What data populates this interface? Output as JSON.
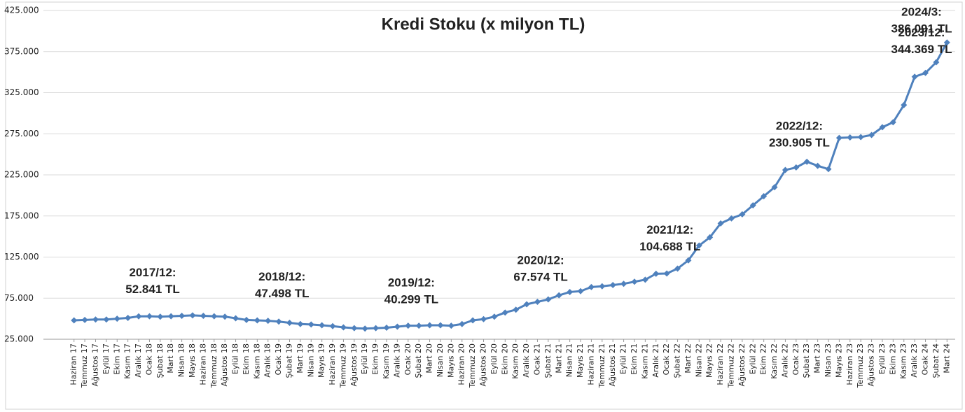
{
  "chart_data": {
    "type": "line",
    "title": "Kredi Stoku (x milyon TL)",
    "categories": [
      "Haziran 17",
      "Temmuz 17",
      "Ağustos 17",
      "Eylül 17",
      "Ekim 17",
      "Kasım 17",
      "Aralık 17",
      "Ocak 18",
      "Şubat 18",
      "Mart 18",
      "Nisan 18",
      "Mayıs 18",
      "Haziran 18",
      "Temmuz 18",
      "Ağustos 18",
      "Eylül 18",
      "Ekim 18",
      "Kasım 18",
      "Aralık 18",
      "Ocak 19",
      "Şubat 19",
      "Mart 19",
      "Nisan 19",
      "Mayıs 19",
      "Haziran 19",
      "Temmuz 19",
      "Ağustos 19",
      "Eylül 19",
      "Ekim 19",
      "Kasım 19",
      "Aralık 19",
      "Ocak 20",
      "Şubat 20",
      "Mart 20",
      "Nisan 20",
      "Mayıs 20",
      "Haziran 20",
      "Temmuz 20",
      "Ağustos 20",
      "Eylül 20",
      "Ekim 20",
      "Kasım 20",
      "Aralık 20",
      "Ocak 21",
      "Şubat 21",
      "Mart 21",
      "Nisan 21",
      "Mayıs 21",
      "Haziran 21",
      "Temmuz 21",
      "Ağustos 21",
      "Eylül 21",
      "Ekim 21",
      "Kasım 21",
      "Aralık 21",
      "Ocak 22",
      "Şubat 22",
      "Mart 22",
      "Nisan 22",
      "Mayıs 22",
      "Haziran 22",
      "Temmuz 22",
      "Ağustos 22",
      "Eylül 22",
      "Ekim 22",
      "Kasım 22",
      "Aralık 22",
      "Ocak 23",
      "Şubat 23",
      "Mart 23",
      "Nisan 23",
      "Mayıs 23",
      "Haziran 23",
      "Temmuz 23",
      "Ağustos 23",
      "Eylül 23",
      "Ekim 23",
      "Kasım 23",
      "Aralık 23",
      "Ocak 24",
      "Şubat 24",
      "Mart 24"
    ],
    "series": [
      {
        "name": "Kredi Stoku",
        "color": "#4f81bd",
        "values": [
          48000,
          48500,
          49000,
          49000,
          50000,
          51000,
          52841,
          53000,
          52500,
          53000,
          53500,
          54000,
          53500,
          53000,
          52500,
          50500,
          48500,
          48000,
          47498,
          46500,
          45000,
          43500,
          43000,
          42000,
          41000,
          39500,
          38500,
          38000,
          38500,
          39000,
          40299,
          41500,
          41500,
          42000,
          42000,
          41500,
          43500,
          48000,
          49500,
          52500,
          57500,
          61000,
          67574,
          70500,
          73500,
          78500,
          82500,
          83500,
          88500,
          89500,
          91000,
          92500,
          95000,
          97500,
          104688,
          105000,
          111000,
          121000,
          139000,
          149000,
          166000,
          172000,
          177000,
          188000,
          199000,
          210000,
          230905,
          234000,
          241000,
          236000,
          232000,
          270000,
          270500,
          271000,
          273500,
          283000,
          289000,
          310000,
          344369,
          349000,
          362000,
          386091
        ]
      }
    ],
    "ylim": [
      25000,
      425000
    ],
    "yticks": [
      {
        "value": 25000,
        "label": "25.000"
      },
      {
        "value": 75000,
        "label": "75.000"
      },
      {
        "value": 125000,
        "label": "125.000"
      },
      {
        "value": 175000,
        "label": "175.000"
      },
      {
        "value": 225000,
        "label": "225.000"
      },
      {
        "value": 275000,
        "label": "275.000"
      },
      {
        "value": 325000,
        "label": "325.000"
      },
      {
        "value": 375000,
        "label": "375.000"
      },
      {
        "value": 425000,
        "label": "425.000"
      }
    ],
    "grid": true,
    "annotations": [
      {
        "category": "Aralık 17",
        "lines": [
          "2017/12:",
          "52.841 TL"
        ]
      },
      {
        "category": "Aralık 18",
        "lines": [
          "2018/12:",
          "47.498 TL"
        ]
      },
      {
        "category": "Aralık 19",
        "lines": [
          "2019/12:",
          "40.299 TL"
        ]
      },
      {
        "category": "Aralık 20",
        "lines": [
          "2020/12:",
          "67.574 TL"
        ]
      },
      {
        "category": "Aralık 21",
        "lines": [
          "2021/12:",
          "104.688 TL"
        ]
      },
      {
        "category": "Aralık 22",
        "lines": [
          "2022/12:",
          "230.905 TL"
        ]
      },
      {
        "category": "Aralık 23",
        "lines": [
          "2023/12:",
          "344.369 TL"
        ]
      },
      {
        "category": "Mart 24",
        "lines": [
          "2024/3:",
          "386.091 TL"
        ]
      }
    ]
  }
}
